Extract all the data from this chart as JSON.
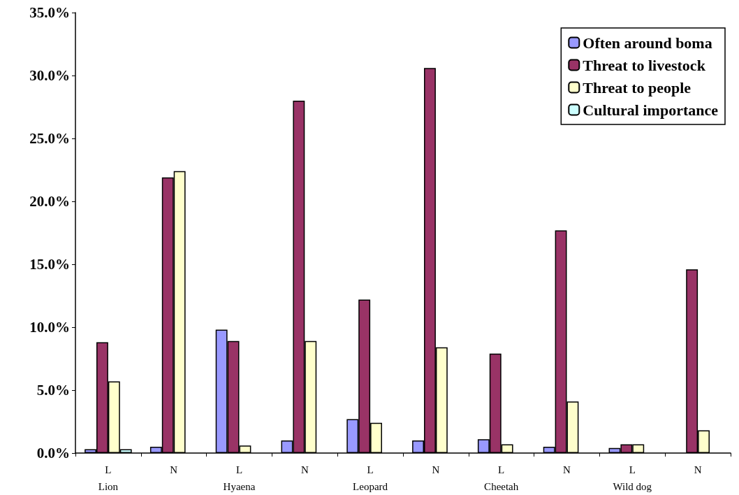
{
  "chart_data": {
    "type": "bar",
    "categories": [
      "L\nLion",
      "N",
      "L\nHyaena",
      "N",
      "L\nLeopard",
      "N",
      "L\nCheetah",
      "N",
      "L\nWild dog",
      "N"
    ],
    "series": [
      {
        "name": "Often around boma",
        "color": "#9999ff",
        "values": [
          0.3,
          0.5,
          9.8,
          1.0,
          2.7,
          1.0,
          1.1,
          0.5,
          0.4,
          null
        ]
      },
      {
        "name": "Threat to livestock",
        "color": "#993366",
        "values": [
          8.8,
          21.9,
          8.9,
          28.0,
          12.2,
          30.6,
          7.9,
          17.7,
          0.7,
          14.6
        ]
      },
      {
        "name": "Threat to people",
        "color": "#ffffcc",
        "values": [
          5.7,
          22.4,
          0.6,
          8.9,
          2.4,
          8.4,
          0.7,
          4.1,
          0.7,
          1.8
        ]
      },
      {
        "name": "Cultural importance",
        "color": "#ccffff",
        "values": [
          0.3,
          null,
          null,
          null,
          null,
          null,
          null,
          null,
          null,
          null
        ]
      }
    ],
    "ylim": [
      0,
      35
    ],
    "yticks": [
      {
        "value": 0,
        "label": "0.0%"
      },
      {
        "value": 5,
        "label": "5.0%"
      },
      {
        "value": 10,
        "label": "10.0%"
      },
      {
        "value": 15,
        "label": "15.0%"
      },
      {
        "value": 20,
        "label": "20.0%"
      },
      {
        "value": 25,
        "label": "25.0%"
      },
      {
        "value": 30,
        "label": "30.0%"
      },
      {
        "value": 35,
        "label": "35.0%"
      }
    ],
    "grid": false,
    "legend": "top right"
  }
}
